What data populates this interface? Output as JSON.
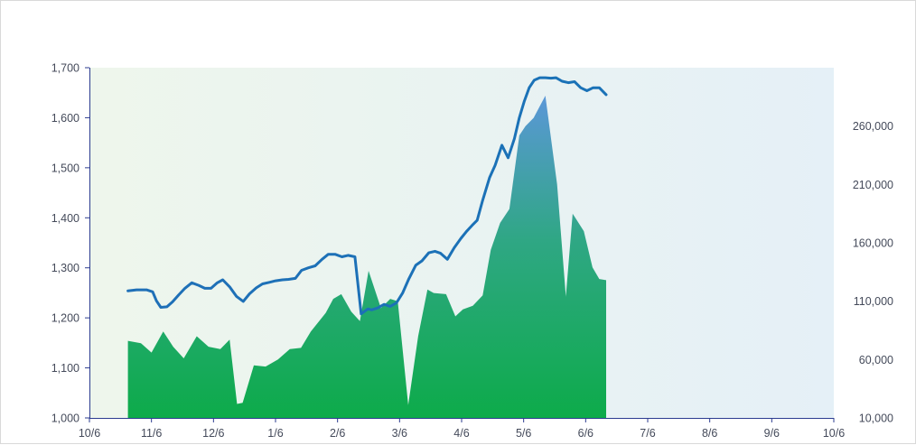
{
  "chart_data": {
    "type": "area+line",
    "title": "",
    "xlabel": "",
    "ylabel_left": "",
    "ylabel_right": "",
    "grid": false,
    "legend": "none",
    "x_ticks": [
      "10/6",
      "11/6",
      "12/6",
      "1/6",
      "2/6",
      "3/6",
      "4/6",
      "5/6",
      "6/6",
      "7/6",
      "8/6",
      "9/6",
      "10/6"
    ],
    "y_left": {
      "min": 1000,
      "max": 1700,
      "ticks": [
        "1,000",
        "1,100",
        "1,200",
        "1,300",
        "1,400",
        "1,500",
        "1,600",
        "1,700"
      ]
    },
    "y_right": {
      "min": 10000,
      "max": 310000,
      "ticks": [
        "10,000",
        "60,000",
        "110,000",
        "160,000",
        "210,000",
        "260,000"
      ]
    },
    "series": [
      {
        "type": "area",
        "axis": "right",
        "x": [
          0.62,
          0.83,
          1.0,
          1.19,
          1.35,
          1.52,
          1.73,
          1.92,
          2.11,
          2.26,
          2.38,
          2.47,
          2.65,
          2.84,
          3.04,
          3.23,
          3.41,
          3.57,
          3.81,
          3.93,
          4.06,
          4.22,
          4.36,
          4.5,
          4.7,
          4.85,
          4.97,
          5.14,
          5.3,
          5.45,
          5.55,
          5.75,
          5.9,
          6.02,
          6.18,
          6.34,
          6.47,
          6.62,
          6.77,
          6.93,
          7.03,
          7.16,
          7.35,
          7.54,
          7.68,
          7.79,
          7.97,
          8.11,
          8.22,
          8.33
        ],
        "y": [
          76000,
          74000,
          66000,
          84000,
          71000,
          61000,
          80000,
          71000,
          69000,
          77000,
          22000,
          23000,
          55000,
          54000,
          60000,
          69000,
          70000,
          84000,
          100000,
          112000,
          116000,
          101000,
          93000,
          136000,
          104000,
          112000,
          110000,
          21000,
          80000,
          120000,
          117000,
          116000,
          97000,
          103000,
          106000,
          115000,
          154000,
          177000,
          189000,
          252000,
          260000,
          267000,
          286000,
          210000,
          114000,
          185000,
          170000,
          139000,
          129000,
          128000
        ]
      },
      {
        "type": "line",
        "axis": "left",
        "x": [
          0.62,
          0.76,
          0.92,
          1.02,
          1.08,
          1.15,
          1.25,
          1.34,
          1.44,
          1.54,
          1.65,
          1.76,
          1.86,
          1.96,
          2.06,
          2.15,
          2.26,
          2.37,
          2.48,
          2.58,
          2.69,
          2.79,
          2.9,
          3.0,
          3.11,
          3.21,
          3.32,
          3.42,
          3.53,
          3.64,
          3.75,
          3.85,
          3.96,
          4.07,
          4.17,
          4.28,
          4.38,
          4.49,
          4.55,
          4.65,
          4.75,
          4.85,
          4.95,
          5.05,
          5.15,
          5.26,
          5.36,
          5.47,
          5.57,
          5.66,
          5.77,
          5.88,
          5.99,
          6.08,
          6.17,
          6.25,
          6.34,
          6.45,
          6.54,
          6.65,
          6.75,
          6.85,
          6.93,
          7.01,
          7.09,
          7.17,
          7.26,
          7.35,
          7.44,
          7.52,
          7.62,
          7.72,
          7.82,
          7.92,
          8.02,
          8.12,
          8.22,
          8.33
        ],
        "y": [
          1254,
          1256,
          1256,
          1252,
          1234,
          1221,
          1222,
          1232,
          1246,
          1259,
          1270,
          1265,
          1259,
          1259,
          1270,
          1276,
          1262,
          1243,
          1233,
          1248,
          1260,
          1268,
          1271,
          1274,
          1276,
          1277,
          1279,
          1295,
          1300,
          1304,
          1317,
          1327,
          1327,
          1322,
          1325,
          1322,
          1208,
          1218,
          1216,
          1220,
          1227,
          1223,
          1230,
          1250,
          1278,
          1305,
          1314,
          1330,
          1333,
          1329,
          1317,
          1340,
          1359,
          1373,
          1385,
          1395,
          1435,
          1480,
          1505,
          1545,
          1520,
          1558,
          1600,
          1633,
          1660,
          1675,
          1680,
          1680,
          1679,
          1680,
          1673,
          1670,
          1672,
          1660,
          1654,
          1660,
          1660,
          1646
        ]
      }
    ]
  }
}
